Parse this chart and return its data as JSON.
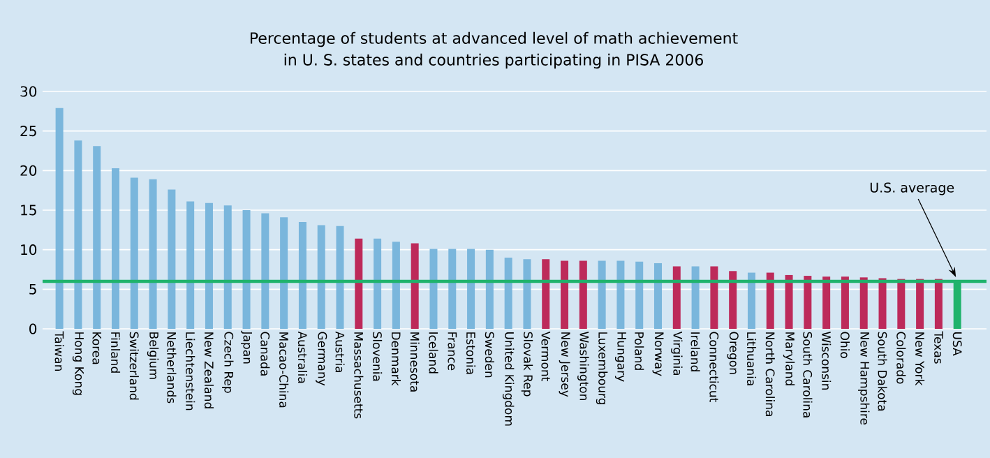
{
  "chart_data": {
    "type": "bar",
    "title": "Percentage of students at advanced level of math achievement\nin U. S. states and countries participating in PISA 2006",
    "categories": [
      "Taiwan",
      "Hong Kong",
      "Korea",
      "Finland",
      "Switzerland",
      "Belgium",
      "Netherlands",
      "Liechtenstein",
      "New Zealand",
      "Czech Rep",
      "Japan",
      "Canada",
      "Macao-China",
      "Australia",
      "Germany",
      "Austria",
      "Massachusetts",
      "Slovenia",
      "Denmark",
      "Minnesota",
      "Iceland",
      "France",
      "Estonia",
      "Sweden",
      "United Kingdom",
      "Slovak Rep",
      "Vermont",
      "New Jersey",
      "Washington",
      "Luxembourg",
      "Hungary",
      "Poland",
      "Norway",
      "Virginia",
      "Ireland",
      "Connecticut",
      "Oregon",
      "Lithuania",
      "North Carolina",
      "Maryland",
      "South Carolina",
      "Wisconsin",
      "Ohio",
      "New Hampshire",
      "South Dakota",
      "Colorado",
      "New York",
      "Texas",
      "USA"
    ],
    "values": [
      27.9,
      23.8,
      23.1,
      20.3,
      19.1,
      18.9,
      17.6,
      16.1,
      15.9,
      15.6,
      15.0,
      14.6,
      14.1,
      13.5,
      13.1,
      13.0,
      11.4,
      11.4,
      11.0,
      10.8,
      10.1,
      10.1,
      10.1,
      10.0,
      9.0,
      8.8,
      8.8,
      8.6,
      8.6,
      8.6,
      8.6,
      8.5,
      8.3,
      7.9,
      7.9,
      7.9,
      7.3,
      7.1,
      7.1,
      6.8,
      6.7,
      6.6,
      6.6,
      6.5,
      6.4,
      6.3,
      6.3,
      6.3,
      6.0
    ],
    "colors": [
      "#7ab6dc",
      "#7ab6dc",
      "#7ab6dc",
      "#7ab6dc",
      "#7ab6dc",
      "#7ab6dc",
      "#7ab6dc",
      "#7ab6dc",
      "#7ab6dc",
      "#7ab6dc",
      "#7ab6dc",
      "#7ab6dc",
      "#7ab6dc",
      "#7ab6dc",
      "#7ab6dc",
      "#7ab6dc",
      "#bd2a5a",
      "#7ab6dc",
      "#7ab6dc",
      "#bd2a5a",
      "#7ab6dc",
      "#7ab6dc",
      "#7ab6dc",
      "#7ab6dc",
      "#7ab6dc",
      "#7ab6dc",
      "#bd2a5a",
      "#bd2a5a",
      "#bd2a5a",
      "#7ab6dc",
      "#7ab6dc",
      "#7ab6dc",
      "#7ab6dc",
      "#bd2a5a",
      "#7ab6dc",
      "#bd2a5a",
      "#bd2a5a",
      "#7ab6dc",
      "#bd2a5a",
      "#bd2a5a",
      "#bd2a5a",
      "#bd2a5a",
      "#bd2a5a",
      "#bd2a5a",
      "#bd2a5a",
      "#bd2a5a",
      "#bd2a5a",
      "#bd2a5a",
      "#20b36c"
    ],
    "ylim": [
      0,
      30
    ],
    "yticks": [
      0,
      5,
      10,
      15,
      20,
      25,
      30
    ],
    "grid": "y",
    "ref_lines": [
      {
        "axis": "y",
        "value": 6.0,
        "color": "#20b36c"
      }
    ],
    "annotations": [
      "U.S. average"
    ]
  }
}
